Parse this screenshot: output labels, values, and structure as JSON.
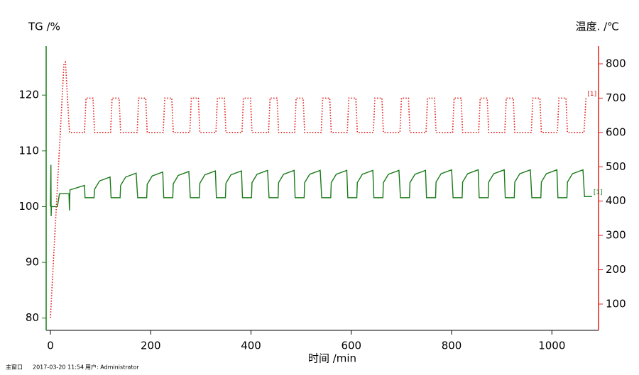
{
  "chart_data": {
    "type": "line",
    "ylabel": "TG /%",
    "y2label": "温度. /℃",
    "xlabel": "时间 /min",
    "xlim": [
      -8.5,
      1093
    ],
    "xticks": [
      0,
      200,
      400,
      600,
      800,
      1000
    ],
    "ylim": [
      77.8,
      128.8
    ],
    "yticks": [
      80,
      90,
      100,
      110,
      120
    ],
    "y2lim": [
      23.5,
      851.6
    ],
    "y2ticks": [
      100,
      200,
      300,
      400,
      500,
      600,
      700,
      800
    ],
    "grid": false,
    "series": [
      {
        "label": "[1]",
        "color": "#1a7a1a",
        "axis": "y",
        "style": "solid",
        "x": [
          0,
          1,
          1.5,
          2,
          14,
          18,
          37,
          38,
          39,
          68,
          69,
          87,
          88,
          98,
          119,
          121,
          139,
          140,
          150,
          171,
          174,
          192,
          193,
          203,
          224,
          226,
          244,
          245,
          255,
          276,
          279,
          297,
          298,
          308,
          329,
          331,
          349,
          350,
          360,
          381,
          383,
          401,
          402,
          412,
          433,
          436,
          454,
          455,
          465,
          486,
          488,
          506,
          507,
          517,
          538,
          541,
          559,
          560,
          570,
          591,
          593,
          611,
          612,
          622,
          643,
          645,
          663,
          664,
          674,
          695,
          698,
          716,
          717,
          727,
          748,
          750,
          768,
          769,
          779,
          800,
          803,
          821,
          822,
          832,
          853,
          855,
          873,
          874,
          884,
          905,
          907,
          925,
          926,
          936,
          957,
          960,
          978,
          979,
          989,
          1010,
          1012,
          1030,
          1031,
          1041,
          1062,
          1065,
          1080
        ],
        "values": [
          100,
          107.5,
          98.3,
          100,
          100,
          102.3,
          102.3,
          99.3,
          103,
          103.8,
          101.6,
          101.6,
          103.1,
          104.6,
          105.3,
          101.6,
          101.6,
          103.8,
          105.3,
          106.0,
          101.6,
          101.6,
          104.0,
          105.5,
          106.2,
          101.6,
          101.6,
          104.1,
          105.6,
          106.3,
          101.6,
          101.6,
          104.2,
          105.7,
          106.4,
          101.6,
          101.6,
          104.2,
          105.7,
          106.4,
          101.6,
          101.6,
          104.3,
          105.8,
          106.5,
          101.6,
          101.6,
          104.3,
          105.8,
          106.5,
          101.6,
          101.6,
          104.3,
          105.8,
          106.5,
          101.6,
          101.6,
          104.3,
          105.8,
          106.5,
          101.6,
          101.6,
          104.3,
          105.8,
          106.5,
          101.6,
          101.6,
          104.3,
          105.8,
          106.5,
          101.6,
          101.6,
          104.3,
          105.8,
          106.5,
          101.6,
          101.6,
          104.4,
          105.9,
          106.6,
          101.6,
          101.6,
          104.4,
          105.9,
          106.6,
          101.6,
          101.6,
          104.4,
          105.9,
          106.6,
          101.6,
          101.6,
          104.4,
          105.9,
          106.6,
          101.6,
          101.6,
          104.4,
          105.9,
          106.6,
          101.6,
          101.6,
          104.4,
          105.9,
          106.6,
          101.8,
          101.8
        ]
      },
      {
        "label": "[1]",
        "color": "#e0201c",
        "axis": "y2",
        "style": "dotted",
        "x": [
          0,
          27,
          30,
          38,
          68,
          71,
          85,
          88,
          120,
          123,
          137,
          140,
          173,
          176,
          190,
          193,
          225,
          228,
          242,
          245,
          278,
          281,
          295,
          298,
          330,
          333,
          347,
          350,
          382,
          385,
          399,
          402,
          435,
          438,
          452,
          455,
          487,
          490,
          504,
          507,
          540,
          543,
          557,
          560,
          592,
          595,
          609,
          612,
          644,
          647,
          661,
          664,
          697,
          700,
          714,
          717,
          749,
          752,
          766,
          769,
          802,
          805,
          819,
          822,
          854,
          857,
          871,
          874,
          906,
          909,
          923,
          926,
          959,
          962,
          976,
          979,
          1011,
          1014,
          1028,
          1031,
          1064,
          1068
        ],
        "values": [
          60,
          800,
          805,
          600,
          600,
          700,
          700,
          600,
          600,
          700,
          700,
          600,
          600,
          700,
          700,
          600,
          600,
          700,
          700,
          600,
          600,
          700,
          700,
          600,
          600,
          700,
          700,
          600,
          600,
          700,
          700,
          600,
          600,
          700,
          700,
          600,
          600,
          700,
          700,
          600,
          600,
          700,
          700,
          600,
          600,
          700,
          700,
          600,
          600,
          700,
          700,
          600,
          600,
          700,
          700,
          600,
          600,
          700,
          700,
          600,
          600,
          700,
          700,
          600,
          600,
          700,
          700,
          600,
          600,
          700,
          700,
          600,
          600,
          700,
          700,
          600,
          600,
          700,
          700,
          600,
          600,
          700
        ]
      }
    ]
  },
  "status_bar": {
    "window": "主窗口",
    "time": "2017-03-20 11:54",
    "user": "用户: Administrator"
  }
}
